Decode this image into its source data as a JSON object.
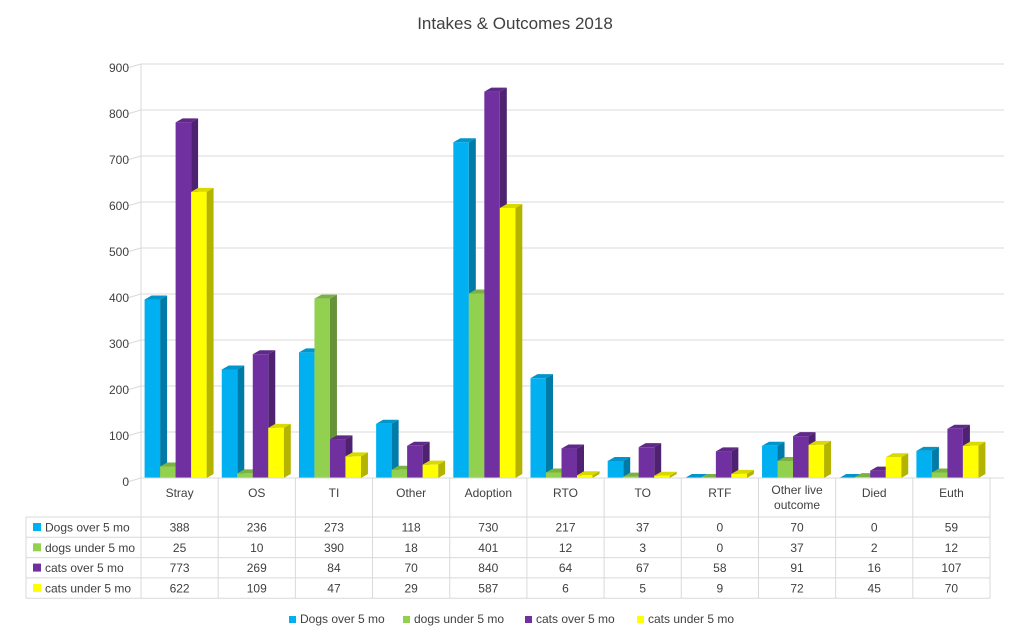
{
  "chart_data": {
    "type": "bar",
    "title": "Intakes & Outcomes 2018",
    "xlabel": "",
    "ylabel": "",
    "ylim": [
      0,
      900
    ],
    "yticks": [
      0,
      100,
      200,
      300,
      400,
      500,
      600,
      700,
      800,
      900
    ],
    "grid": true,
    "legend": "bottom",
    "has_data_table": true,
    "categories": [
      "Stray",
      "OS",
      "TI",
      "Other",
      "Adoption",
      "RTO",
      "TO",
      "RTF",
      "Other live outcome",
      "Died",
      "Euth"
    ],
    "series": [
      {
        "name": "Dogs over 5 mo",
        "color": "#00b0f0",
        "values": [
          388,
          236,
          273,
          118,
          730,
          217,
          37,
          0,
          70,
          0,
          59
        ]
      },
      {
        "name": "dogs under 5 mo",
        "color": "#92d050",
        "values": [
          25,
          10,
          390,
          18,
          401,
          12,
          3,
          0,
          37,
          2,
          12
        ]
      },
      {
        "name": "cats over 5 mo",
        "color": "#7030a0",
        "values": [
          773,
          269,
          84,
          70,
          840,
          64,
          67,
          58,
          91,
          16,
          107
        ]
      },
      {
        "name": "cats under 5 mo",
        "color": "#ffff00",
        "values": [
          622,
          109,
          47,
          29,
          587,
          6,
          5,
          9,
          72,
          45,
          70
        ]
      }
    ]
  }
}
